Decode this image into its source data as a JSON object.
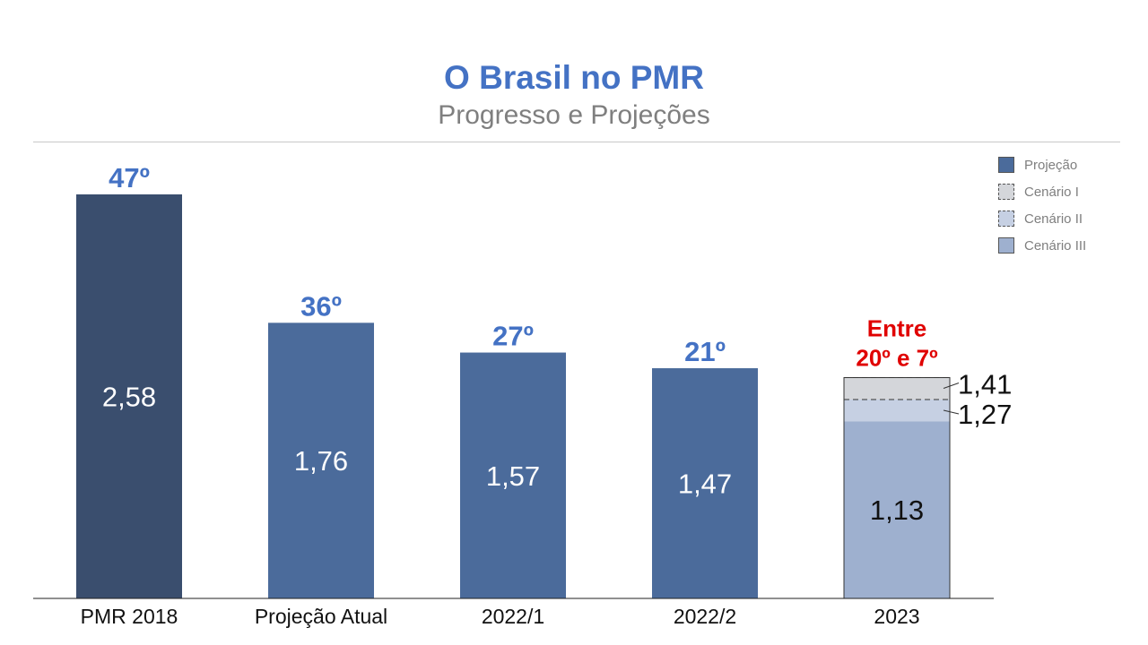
{
  "title": "O Brasil no PMR",
  "subtitle": "Progresso e Projeções",
  "colors": {
    "title": "#4472c4",
    "subtitle": "#7f7f7f",
    "pmr2018": "#3a4e6e",
    "projecao": "#4b6b9b",
    "cenario_i": "#d4d6da",
    "cenario_ii": "#c6d0e3",
    "cenario_iii": "#9eb0cf",
    "rank_label": "#4472c4",
    "highlight": "#e00000"
  },
  "legend": [
    {
      "label": "Projeção",
      "color": "#4b6b9b",
      "dashed": false
    },
    {
      "label": "Cenário I",
      "color": "#d4d6da",
      "dashed": true
    },
    {
      "label": "Cenário II",
      "color": "#c6d0e3",
      "dashed": true
    },
    {
      "label": "Cenário III",
      "color": "#9eb0cf",
      "dashed": false
    }
  ],
  "chart_data": {
    "type": "bar",
    "categories": [
      "PMR 2018",
      "Projeção Atual",
      "2022/1",
      "2022/2",
      "2023"
    ],
    "values": [
      2.58,
      1.76,
      1.57,
      1.47,
      1.13
    ],
    "value_labels": [
      "2,58",
      "1,76",
      "1,57",
      "1,47",
      "1,13"
    ],
    "rank_labels": [
      "47º",
      "36º",
      "27º",
      "21º"
    ],
    "highlight_label": [
      "Entre",
      "20º e 7º"
    ],
    "scenarios_2023": [
      {
        "name": "Cenário III",
        "value": 1.13,
        "label": "1,13"
      },
      {
        "name": "Cenário II",
        "value": 1.27,
        "label": "1,27"
      },
      {
        "name": "Cenário I",
        "value": 1.41,
        "label": "1,41"
      }
    ],
    "ylim": [
      0,
      2.58
    ],
    "legend_position": "top-right",
    "grid": false
  }
}
